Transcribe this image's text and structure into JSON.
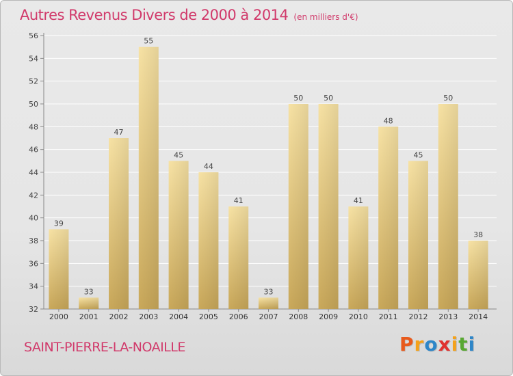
{
  "title": "Autres Revenus Divers de 2000 à 2014",
  "unit": "(en milliers d'€)",
  "city": "SAINT-PIERRE-LA-NOAILLE",
  "logo": {
    "text": "Proxiti",
    "colors": [
      "#e85a1c",
      "#f4a21b",
      "#2e86c8",
      "#e0312f",
      "#f4a21b",
      "#58a832",
      "#2e86c8"
    ]
  },
  "colors": {
    "title": "#d13a6b",
    "bar_light": "#f7e2a4",
    "bar_dark": "#c9a85a",
    "grid": "#ffffff"
  },
  "chart_data": {
    "type": "bar",
    "title": "Autres Revenus Divers de 2000 à 2014",
    "xlabel": "",
    "ylabel": "",
    "categories": [
      "2000",
      "2001",
      "2002",
      "2003",
      "2004",
      "2005",
      "2006",
      "2007",
      "2008",
      "2009",
      "2010",
      "2011",
      "2012",
      "2013",
      "2014"
    ],
    "values": [
      39,
      33,
      47,
      55,
      45,
      44,
      41,
      33,
      50,
      50,
      41,
      48,
      45,
      50,
      38
    ],
    "ylim": [
      32,
      56
    ],
    "yticks": [
      32,
      34,
      36,
      38,
      40,
      42,
      44,
      46,
      48,
      50,
      52,
      54,
      56
    ],
    "grid": true
  }
}
